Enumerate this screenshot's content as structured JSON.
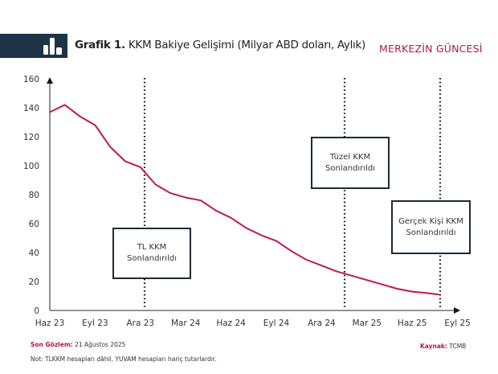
{
  "header": {
    "title_prefix": "Grafik 1.",
    "title": "KKM Bakiye Gelişimi (Milyar ABD doları, Aylık)",
    "brand": "MERKEZİN GÜNCESİ",
    "icon": "bar-chart-icon",
    "colors": {
      "header_block": "#1f3347",
      "brand": "#b0174d"
    }
  },
  "chart_data": {
    "type": "line",
    "title": "KKM Bakiye Gelişimi (Milyar ABD doları, Aylık)",
    "xlabel": "",
    "ylabel": "",
    "ylim": [
      0,
      160
    ],
    "yticks": [
      0,
      20,
      40,
      60,
      80,
      100,
      120,
      140,
      160
    ],
    "xtick_labels": [
      "Haz 23",
      "Eyl 23",
      "Ara 23",
      "Mar 24",
      "Haz 24",
      "Eyl 24",
      "Ara 24",
      "Mar 25",
      "Haz 25",
      "Eyl 25"
    ],
    "x": [
      "2023-06",
      "2023-07",
      "2023-08",
      "2023-09",
      "2023-10",
      "2023-11",
      "2023-12",
      "2024-01",
      "2024-02",
      "2024-03",
      "2024-04",
      "2024-05",
      "2024-06",
      "2024-07",
      "2024-08",
      "2024-09",
      "2024-10",
      "2024-11",
      "2024-12",
      "2025-01",
      "2025-02",
      "2025-03",
      "2025-04",
      "2025-05",
      "2025-06",
      "2025-07",
      "2025-08"
    ],
    "series": [
      {
        "values": [
          137,
          142,
          134,
          128,
          113,
          103,
          99,
          87,
          81,
          78,
          76,
          69,
          64,
          57,
          52,
          48,
          41,
          35,
          31,
          27,
          24,
          21,
          18,
          15,
          13,
          12,
          11
        ],
        "color": "#c0184f"
      }
    ],
    "grid": false,
    "annotations": [
      {
        "x": "2023-12",
        "label_line1": "TL KKM",
        "label_line2": "Sonlandırıldı"
      },
      {
        "x": "2025-02",
        "label_line1": "Tüzel KKM",
        "label_line2": "Sonlandırıldı"
      },
      {
        "x": "2025-08",
        "label_line1": "Gerçek Kişi KKM",
        "label_line2": "Sonlandırıldı"
      }
    ]
  },
  "footer": {
    "last_obs_label": "Son Gözlem:",
    "last_obs_value": "21 Ağustos 2025",
    "source_label": "Kaynak:",
    "source_value": "TCMB",
    "note": "Not: TLKKM hesapları dâhil, YUVAM hesapları hariç tutarlardır."
  }
}
